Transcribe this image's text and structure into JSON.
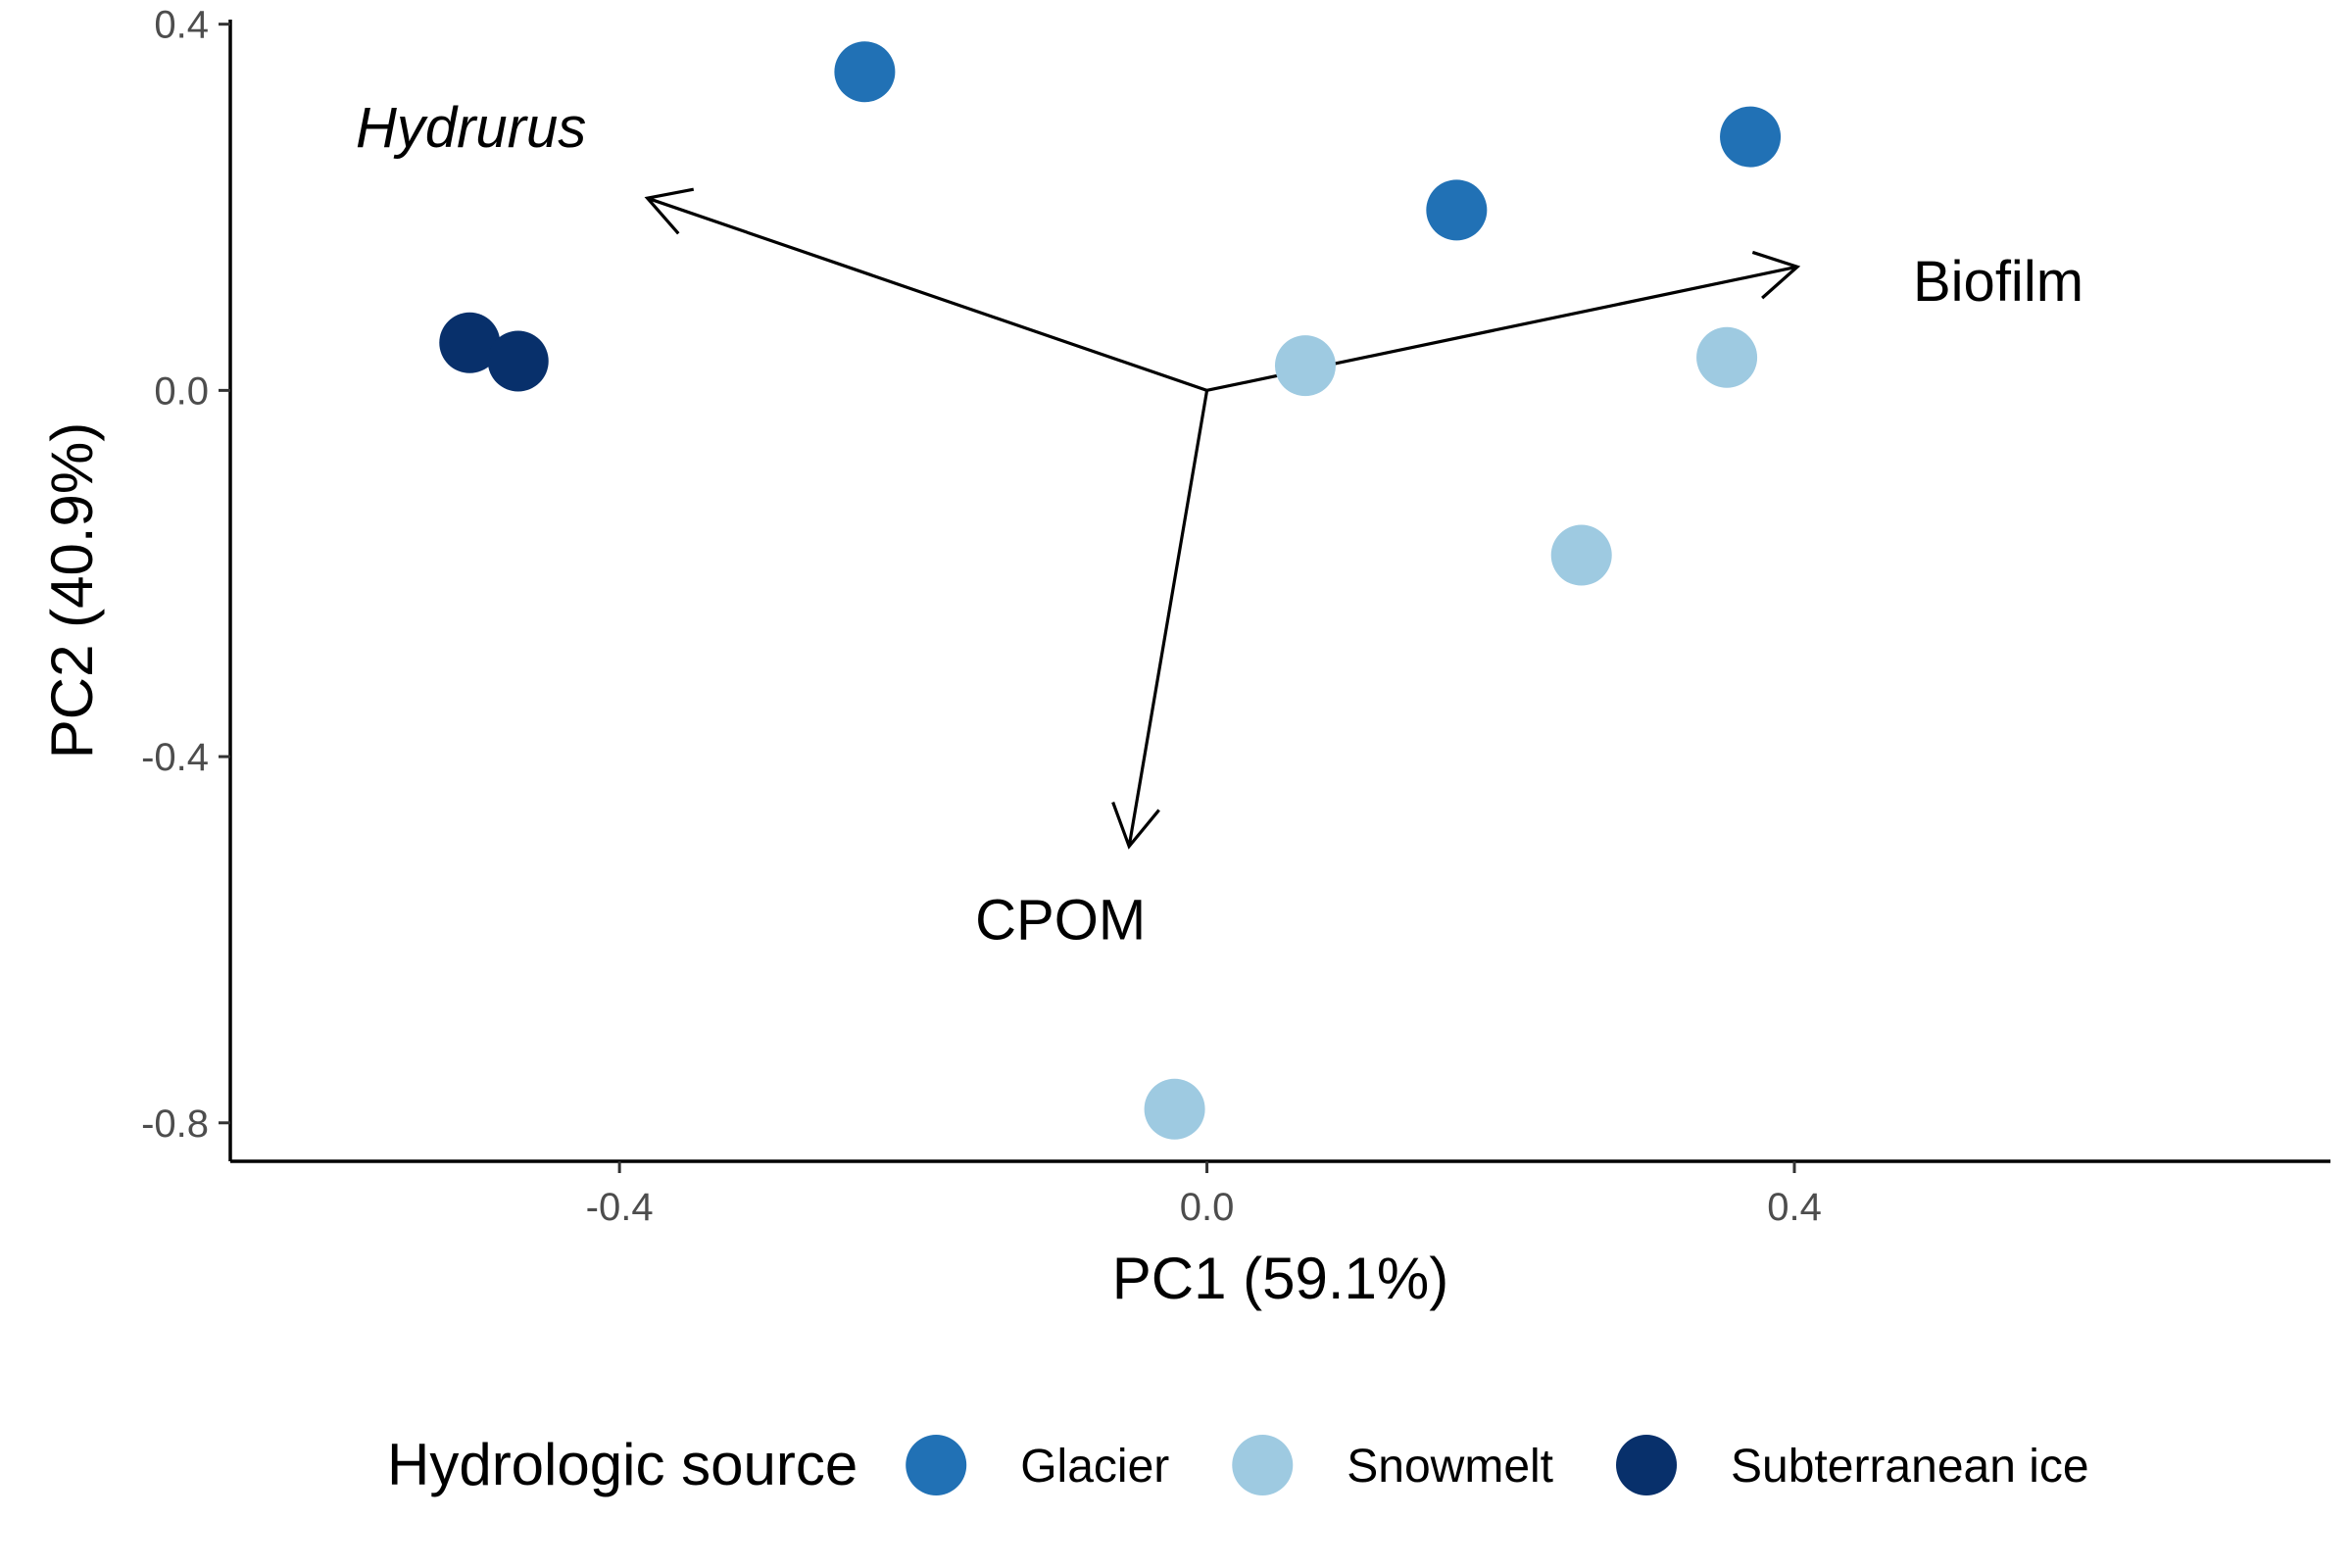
{
  "chart_data": {
    "type": "scatter",
    "title": "",
    "xlabel": "PC1 (59.1%)",
    "ylabel": "PC2 (40.9%)",
    "xlim": [
      -0.665,
      0.765
    ],
    "ylim": [
      -0.842,
      0.405
    ],
    "xticks": [
      -0.4,
      0.0,
      0.4
    ],
    "yticks": [
      0.4,
      0.0,
      -0.4,
      -0.8
    ],
    "xtick_labels": [
      "-0.4",
      "0.0",
      "0.4"
    ],
    "ytick_labels": [
      "0.4",
      "0.0",
      "-0.4",
      "-0.8"
    ],
    "grid": false,
    "legend": {
      "title": "Hydrologic source",
      "position": "bottom"
    },
    "series": [
      {
        "name": "Glacier",
        "color": "#2171b5",
        "points": [
          {
            "x": -0.233,
            "y": 0.348
          },
          {
            "x": 0.17,
            "y": 0.197
          },
          {
            "x": 0.37,
            "y": 0.277
          }
        ]
      },
      {
        "name": "Snowmelt",
        "color": "#9ecae1",
        "points": [
          {
            "x": 0.067,
            "y": 0.027
          },
          {
            "x": 0.354,
            "y": 0.036
          },
          {
            "x": 0.255,
            "y": -0.18
          },
          {
            "x": -0.022,
            "y": -0.785
          }
        ]
      },
      {
        "name": "Subterranean ice",
        "color": "#08306b",
        "points": [
          {
            "x": -0.502,
            "y": 0.052
          },
          {
            "x": -0.469,
            "y": 0.032
          }
        ]
      }
    ],
    "vectors": [
      {
        "label": "Hydrurus",
        "italic": true,
        "x": -0.381,
        "y": 0.21
      },
      {
        "label": "Biofilm",
        "italic": false,
        "x": 0.402,
        "y": 0.135
      },
      {
        "label": "CPOM",
        "italic": false,
        "x": -0.053,
        "y": -0.498
      }
    ]
  }
}
